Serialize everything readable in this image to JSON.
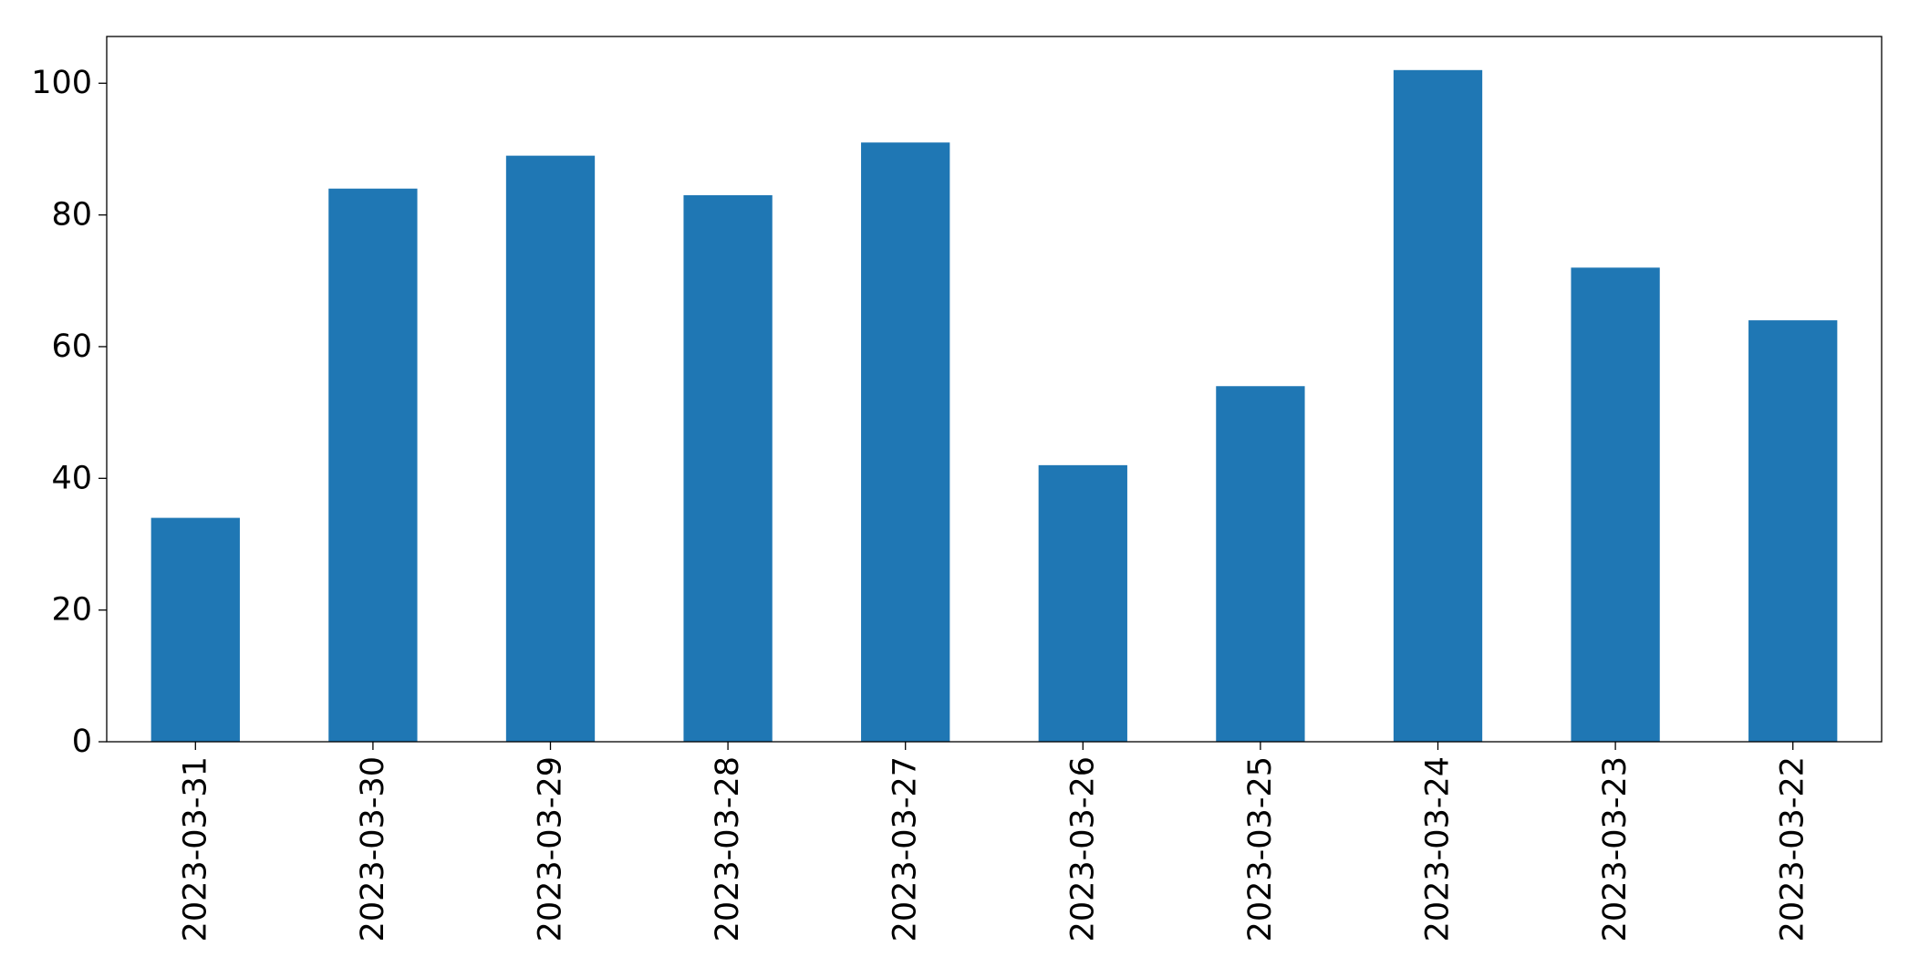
{
  "chart_data": {
    "type": "bar",
    "categories": [
      "2023-03-31",
      "2023-03-30",
      "2023-03-29",
      "2023-03-28",
      "2023-03-27",
      "2023-03-26",
      "2023-03-25",
      "2023-03-24",
      "2023-03-23",
      "2023-03-22"
    ],
    "values": [
      34,
      84,
      89,
      83,
      91,
      42,
      54,
      102,
      72,
      64
    ],
    "color": "#1f77b4",
    "ylim": [
      0,
      107.1
    ],
    "yticks": [
      0,
      20,
      40,
      60,
      80,
      100
    ],
    "grid": false
  }
}
